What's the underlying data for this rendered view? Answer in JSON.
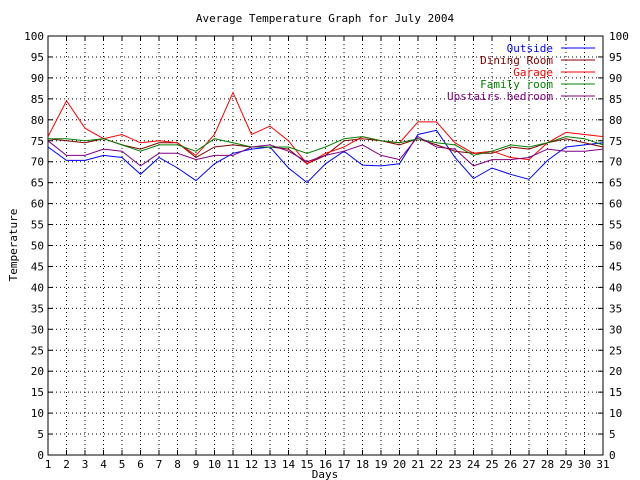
{
  "chart_data": {
    "type": "line",
    "title": "Average Temperature Graph for July 2004",
    "xlabel": "Days",
    "ylabel": "Temperature",
    "xlim": [
      1,
      31
    ],
    "ylim": [
      0,
      100
    ],
    "x_ticks": [
      1,
      2,
      3,
      4,
      5,
      6,
      7,
      8,
      9,
      10,
      11,
      12,
      13,
      14,
      15,
      16,
      17,
      18,
      19,
      20,
      21,
      22,
      23,
      24,
      25,
      26,
      27,
      28,
      29,
      30,
      31
    ],
    "y_ticks": [
      0,
      5,
      10,
      15,
      20,
      25,
      30,
      35,
      40,
      45,
      50,
      55,
      60,
      65,
      70,
      75,
      80,
      85,
      90,
      95,
      100
    ],
    "grid": true,
    "legend_position": "top-right",
    "x": [
      1,
      2,
      3,
      4,
      5,
      6,
      7,
      8,
      9,
      10,
      11,
      12,
      13,
      14,
      15,
      16,
      17,
      18,
      19,
      20,
      21,
      22,
      23,
      24,
      25,
      26,
      27,
      28,
      29,
      30,
      31
    ],
    "series": [
      {
        "name": "Outside",
        "color": "#0000ff",
        "values": [
          73.5,
          70.3,
          70.3,
          71.5,
          71,
          67,
          71,
          68.5,
          65.5,
          69.5,
          72,
          73,
          73.5,
          68.5,
          65,
          69.5,
          72.5,
          69.2,
          69,
          69.5,
          76.5,
          77.5,
          71,
          66,
          68.5,
          67,
          65.8,
          70.3,
          73.5,
          74,
          74.5
        ]
      },
      {
        "name": "Dining Room",
        "color": "#800000",
        "values": [
          75.5,
          75,
          74.5,
          75.5,
          74,
          73,
          74.5,
          74.5,
          71,
          73.5,
          74,
          73.5,
          73.5,
          73,
          69.5,
          71.5,
          75,
          75.5,
          75,
          74,
          75.5,
          74,
          72.5,
          72,
          72,
          73.5,
          73,
          74.5,
          75.5,
          74.5,
          73.5
        ]
      },
      {
        "name": "Garage",
        "color": "#ff0000",
        "values": [
          76,
          84.5,
          78,
          75.5,
          76.5,
          74.5,
          75,
          74.5,
          71.5,
          76.5,
          86.5,
          76.5,
          78.5,
          75,
          69.5,
          72,
          73.5,
          76,
          75,
          74.5,
          79.5,
          79.5,
          74.5,
          72,
          72.5,
          71,
          70.5,
          74.5,
          77,
          76.5,
          76
        ]
      },
      {
        "name": "Family room",
        "color": "#008000",
        "values": [
          75.5,
          75.5,
          75,
          75.5,
          74,
          72.5,
          74,
          74,
          72.5,
          75.5,
          74.5,
          73.5,
          73.5,
          73.5,
          72,
          73.5,
          75.5,
          76,
          75,
          74.5,
          75.5,
          74.5,
          74,
          71.5,
          72.5,
          74,
          73.5,
          74.5,
          76,
          75.5,
          74
        ]
      },
      {
        "name": "Upstairs bedroom",
        "color": "#800080",
        "values": [
          75,
          71.5,
          71.5,
          73,
          72.5,
          69,
          72,
          72,
          70.5,
          71.5,
          71.5,
          73.5,
          74,
          72.5,
          70,
          71.5,
          72.5,
          74,
          71.5,
          70.5,
          76,
          73.5,
          73,
          69,
          70.5,
          70.5,
          71,
          73,
          72.5,
          72.5,
          73
        ]
      }
    ]
  }
}
